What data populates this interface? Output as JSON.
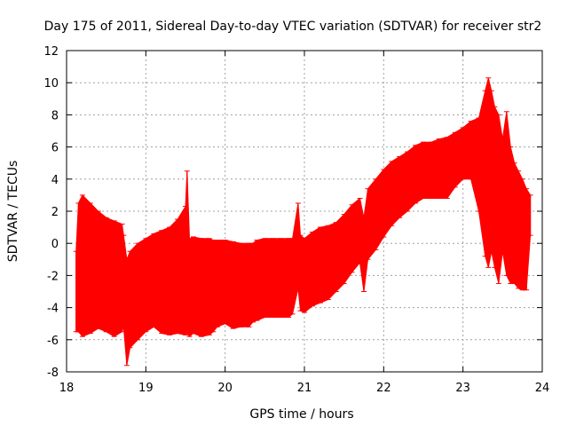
{
  "chart_data": {
    "type": "line",
    "title": "Day 175 of 2011, Sidereal Day-to-day VTEC variation (SDTVAR) for receiver str2",
    "xlabel": "GPS time / hours",
    "ylabel": "SDTVAR / TECUs",
    "xlim": [
      18,
      24
    ],
    "ylim": [
      -8,
      12
    ],
    "xticks": [
      18,
      19,
      20,
      21,
      22,
      23,
      24
    ],
    "yticks": [
      -8,
      -6,
      -4,
      -2,
      0,
      2,
      4,
      6,
      8,
      10,
      12
    ],
    "grid": true,
    "legend": "none",
    "series_color": "#ff0000",
    "series": [
      {
        "style": "errorbars",
        "x": [
          18.12,
          18.15,
          18.2,
          18.3,
          18.4,
          18.5,
          18.6,
          18.7,
          18.72,
          18.76,
          18.8,
          18.9,
          19.0,
          19.1,
          19.2,
          19.3,
          19.4,
          19.5,
          19.52,
          19.55,
          19.6,
          19.7,
          19.8,
          19.85,
          19.9,
          20.0,
          20.1,
          20.2,
          20.3,
          20.35,
          20.4,
          20.5,
          20.6,
          20.7,
          20.8,
          20.85,
          20.92,
          20.95,
          21.0,
          21.1,
          21.2,
          21.3,
          21.4,
          21.5,
          21.6,
          21.7,
          21.75,
          21.8,
          21.9,
          22.0,
          22.1,
          22.2,
          22.3,
          22.4,
          22.5,
          22.6,
          22.7,
          22.8,
          22.9,
          23.0,
          23.1,
          23.2,
          23.28,
          23.32,
          23.36,
          23.4,
          23.45,
          23.5,
          23.55,
          23.6,
          23.65,
          23.7,
          23.75,
          23.8,
          23.85
        ],
        "upper": [
          -0.5,
          2.5,
          3.0,
          2.5,
          2.0,
          1.6,
          1.4,
          1.2,
          0.5,
          -1.0,
          -0.5,
          0.0,
          0.3,
          0.6,
          0.8,
          1.0,
          1.5,
          2.3,
          4.5,
          0.3,
          0.4,
          0.3,
          0.3,
          0.2,
          0.2,
          0.2,
          0.1,
          0.0,
          0.0,
          0.0,
          0.2,
          0.3,
          0.3,
          0.3,
          0.3,
          0.3,
          2.5,
          0.5,
          0.3,
          0.7,
          1.0,
          1.1,
          1.3,
          1.8,
          2.4,
          2.8,
          1.6,
          3.4,
          4.0,
          4.6,
          5.1,
          5.4,
          5.7,
          6.1,
          6.3,
          6.3,
          6.5,
          6.6,
          6.9,
          7.2,
          7.6,
          7.8,
          9.5,
          10.3,
          9.5,
          8.5,
          8.0,
          6.5,
          8.2,
          6.0,
          5.0,
          4.5,
          4.0,
          3.4,
          3.0
        ],
        "lower": [
          -5.5,
          -5.5,
          -5.8,
          -5.6,
          -5.3,
          -5.5,
          -5.8,
          -5.5,
          -5.2,
          -7.6,
          -6.5,
          -6.0,
          -5.5,
          -5.2,
          -5.6,
          -5.7,
          -5.6,
          -5.7,
          -5.6,
          -5.8,
          -5.6,
          -5.8,
          -5.7,
          -5.5,
          -5.2,
          -5.0,
          -5.3,
          -5.2,
          -5.2,
          -4.9,
          -4.8,
          -4.6,
          -4.6,
          -4.6,
          -4.6,
          -4.4,
          -2.8,
          -4.2,
          -4.3,
          -3.9,
          -3.7,
          -3.5,
          -3.0,
          -2.5,
          -1.8,
          -1.2,
          -3.0,
          -1.0,
          -0.4,
          0.4,
          1.1,
          1.6,
          2.0,
          2.5,
          2.8,
          2.8,
          2.8,
          2.8,
          3.5,
          4.0,
          4.0,
          2.0,
          -0.8,
          -1.5,
          -0.5,
          -1.5,
          -2.5,
          -0.5,
          -2.0,
          -2.5,
          -2.5,
          -2.8,
          -2.9,
          -2.9,
          0.5
        ]
      }
    ]
  }
}
